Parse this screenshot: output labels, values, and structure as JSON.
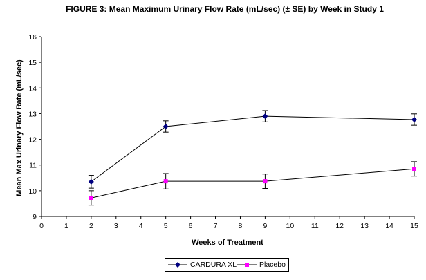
{
  "chart_data": {
    "type": "line",
    "title": "FIGURE 3: Mean Maximum Urinary Flow Rate (mL/sec) (± SE) by Week in Study 1",
    "xlabel": "Weeks of Treatment",
    "ylabel": "Mean Max Urinary Flow Rate (mL/sec)",
    "xlim": [
      0,
      15
    ],
    "ylim": [
      9,
      16
    ],
    "x_ticks": [
      "0",
      "1",
      "2",
      "3",
      "4",
      "5",
      "6",
      "7",
      "8",
      "9",
      "10",
      "11",
      "12",
      "13",
      "14",
      "15"
    ],
    "y_ticks": [
      "9",
      "10",
      "11",
      "12",
      "13",
      "14",
      "15",
      "16"
    ],
    "grid": false,
    "legend_position": "bottom",
    "series": [
      {
        "name": "CARDURA XL",
        "color": "#000080",
        "marker": "diamond",
        "x": [
          2,
          5,
          9,
          15
        ],
        "y": [
          10.35,
          12.5,
          12.9,
          12.77
        ],
        "se": [
          0.25,
          0.22,
          0.22,
          0.22
        ]
      },
      {
        "name": "Placebo",
        "color": "#ff00ff",
        "marker": "square",
        "x": [
          2,
          5,
          9,
          15
        ],
        "y": [
          9.72,
          10.37,
          10.37,
          10.85
        ],
        "se": [
          0.28,
          0.3,
          0.28,
          0.28
        ]
      }
    ]
  }
}
